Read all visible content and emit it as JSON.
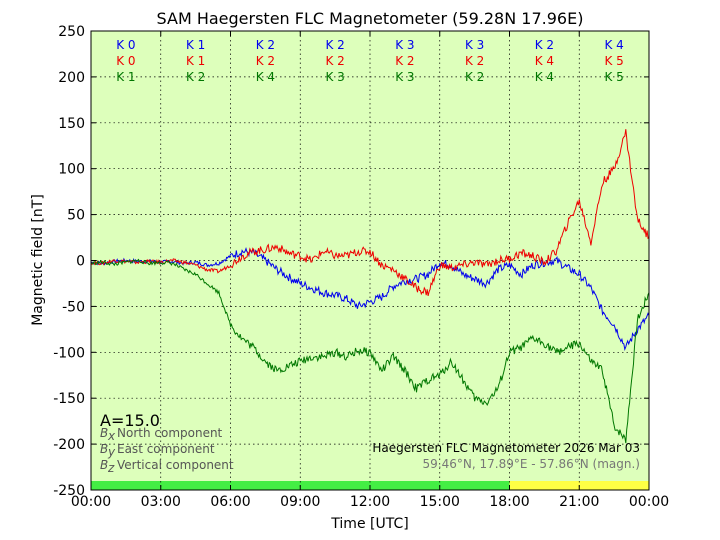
{
  "chart_data": {
    "type": "line",
    "title": "SAM Haegersten FLC Magnetometer (59.28N 17.96E)",
    "xlabel": "Time [UTC]",
    "ylabel": "Magnetic field [nT]",
    "xlim": [
      0,
      24
    ],
    "ylim": [
      -250,
      250
    ],
    "x_ticks": [
      0,
      3,
      6,
      9,
      12,
      15,
      18,
      21,
      24
    ],
    "x_tick_labels": [
      "00:00",
      "03:00",
      "06:00",
      "09:00",
      "12:00",
      "15:00",
      "18:00",
      "21:00",
      "00:00"
    ],
    "y_ticks": [
      -250,
      -200,
      -150,
      -100,
      -50,
      0,
      50,
      100,
      150,
      200,
      250
    ],
    "grid": true,
    "series": [
      {
        "name": "Bx North component",
        "sub": "x",
        "label": "North component",
        "color": "#0000ee",
        "x": [
          0,
          0.5,
          1,
          1.5,
          2,
          2.5,
          3,
          3.5,
          4,
          4.5,
          5,
          5.5,
          6,
          6.5,
          7,
          7.5,
          8,
          8.5,
          9,
          9.5,
          10,
          10.5,
          11,
          11.5,
          12,
          12.5,
          13,
          13.5,
          14,
          14.5,
          15,
          15.5,
          16,
          16.5,
          17,
          17.5,
          18,
          18.5,
          19,
          19.5,
          20,
          20.5,
          21,
          21.5,
          22,
          22.5,
          23,
          23.5,
          24
        ],
        "values": [
          -2,
          -3,
          -1,
          0,
          -1,
          -1,
          -2,
          -1,
          -3,
          -2,
          -5,
          -3,
          5,
          10,
          8,
          0,
          -10,
          -18,
          -25,
          -30,
          -35,
          -38,
          -42,
          -50,
          -45,
          -40,
          -28,
          -22,
          -20,
          -15,
          -2,
          -5,
          -15,
          -20,
          -25,
          -10,
          -5,
          -15,
          -5,
          -2,
          0,
          -8,
          -15,
          -30,
          -55,
          -70,
          -95,
          -75,
          -60
        ]
      },
      {
        "name": "By East component",
        "sub": "y",
        "label": "East component",
        "color": "#ee0000",
        "x": [
          0,
          0.5,
          1,
          1.5,
          2,
          2.5,
          3,
          3.5,
          4,
          4.5,
          5,
          5.5,
          6,
          6.5,
          7,
          7.5,
          8,
          8.5,
          9,
          9.5,
          10,
          10.5,
          11,
          11.5,
          12,
          12.5,
          13,
          13.5,
          14,
          14.5,
          15,
          15.5,
          16,
          16.5,
          17,
          17.5,
          18,
          18.5,
          19,
          19.5,
          20,
          20.5,
          21,
          21.5,
          22,
          22.5,
          23,
          23.5,
          24
        ],
        "values": [
          -2,
          -3,
          0,
          -1,
          -2,
          -1,
          -2,
          0,
          -2,
          -5,
          -10,
          -12,
          -5,
          5,
          10,
          12,
          15,
          8,
          5,
          0,
          10,
          5,
          5,
          10,
          10,
          -5,
          -10,
          -20,
          -30,
          -35,
          -5,
          -8,
          -5,
          -2,
          -5,
          0,
          2,
          8,
          5,
          -2,
          10,
          40,
          65,
          20,
          85,
          100,
          140,
          45,
          25
        ]
      },
      {
        "name": "Bz Vertical component",
        "sub": "z",
        "label": "Vertical component",
        "color": "#007700",
        "x": [
          0,
          0.5,
          1,
          1.5,
          2,
          2.5,
          3,
          3.5,
          4,
          4.5,
          5,
          5.5,
          6,
          6.5,
          7,
          7.5,
          8,
          8.5,
          9,
          9.5,
          10,
          10.5,
          11,
          11.5,
          12,
          12.5,
          13,
          13.5,
          14,
          14.5,
          15,
          15.5,
          16,
          16.5,
          17,
          17.5,
          18,
          18.5,
          19,
          19.5,
          20,
          20.5,
          21,
          21.5,
          22,
          22.5,
          23,
          23.5,
          24
        ],
        "values": [
          -3,
          -2,
          -4,
          -2,
          0,
          -3,
          -2,
          -3,
          -10,
          -15,
          -25,
          -35,
          -70,
          -85,
          -95,
          -110,
          -120,
          -115,
          -110,
          -105,
          -105,
          -100,
          -105,
          -98,
          -100,
          -120,
          -105,
          -120,
          -140,
          -130,
          -125,
          -110,
          -130,
          -150,
          -155,
          -140,
          -100,
          -95,
          -85,
          -90,
          -100,
          -95,
          -90,
          -110,
          -120,
          -180,
          -195,
          -65,
          -35
        ]
      }
    ],
    "k_index_rows": [
      {
        "component": "x",
        "color": "#0000ee",
        "values": [
          "K 0",
          "K 1",
          "K 2",
          "K 2",
          "K 3",
          "K 3",
          "K 2",
          "K 4"
        ]
      },
      {
        "component": "y",
        "color": "#ee0000",
        "values": [
          "K 0",
          "K 1",
          "K 2",
          "K 2",
          "K 2",
          "K 2",
          "K 4",
          "K 5"
        ]
      },
      {
        "component": "z",
        "color": "#007700",
        "values": [
          "K 1",
          "K 2",
          "K 4",
          "K 3",
          "K 3",
          "K 2",
          "K 4",
          "K 5"
        ]
      }
    ],
    "a_index": "A=15.0",
    "status_bar": [
      {
        "from": 0,
        "to": 18,
        "color": "#44ee44"
      },
      {
        "from": 18,
        "to": 24,
        "color": "#ffff44"
      }
    ],
    "footnote_1": "Haegersten FLC Magnetometer 2026 Mar 03",
    "footnote_2": "59.46°N, 17.89°E - 57.86°N (magn.)",
    "plot_background": "#ddffbb"
  }
}
